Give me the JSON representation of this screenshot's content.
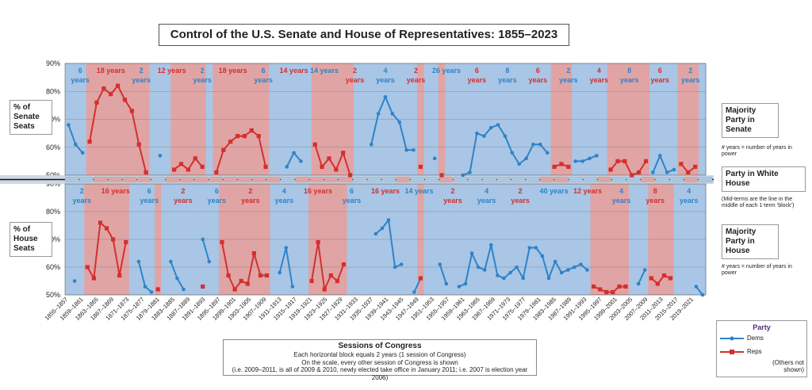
{
  "title": "Control of the U.S. Senate and House of Representatives: 1855–2023",
  "labels": {
    "senate_pct": "% of Senate Seats",
    "house_pct": "% of House Seats",
    "majority_senate": "Majority Party in Senate",
    "majority_house": "Majority Party in House",
    "white_house": "Party in White House",
    "years_note_senate": "# years = number of years in power",
    "years_note_house": "# years = number of years in power",
    "midterm_note": "(Mid-terms are the line in the middle of each 1-term ‘block’)"
  },
  "sessions_box": {
    "heading": "Sessions of Congress",
    "line1": "Each horizontal block equals 2 years (1 session of Congress)",
    "line2": "On the scale, every other session of Congress is shown",
    "line3": "(i.e. 2009–2011, is all of 2009 & 2010, newly elected take office in January 2011; i.e. 2007 is election year 2006)"
  },
  "legend": {
    "title": "Party",
    "dems": "Dems",
    "reps": "Reps",
    "others": "(Others not shown)"
  },
  "colors": {
    "dem_fill": "#a9c6e6",
    "dem_line": "#2e83c8",
    "rep_fill": "#e0a4a4",
    "rep_line": "#d42f2f",
    "plain": "#cfcfcf"
  },
  "chart_data": {
    "type": "line",
    "title": "Control of the U.S. Senate and House of Representatives: 1855–2023",
    "x_tick_labels": [
      "1855–1857",
      "1859–1861",
      "1863–1865",
      "1867–1869",
      "1871–1873",
      "1875–1877",
      "1879–1881",
      "1883–1885",
      "1887–1889",
      "1891–1893",
      "1895–1897",
      "1899–1901",
      "1903–1905",
      "1907–1909",
      "1911–1913",
      "1915–1917",
      "1919–1921",
      "1923–1925",
      "1927–1929",
      "1931–1933",
      "1935–1937",
      "1939–1941",
      "1943–1945",
      "1947–1949",
      "1951–1953",
      "1955–1957",
      "1959–1961",
      "1963–1965",
      "1967–1969",
      "1971–1973",
      "1975–1977",
      "1979–1981",
      "1983–1985",
      "1987–1989",
      "1991–1993",
      "1995–1997",
      "1999–2001",
      "2003–2005",
      "2007–2009",
      "2011–2013",
      "2015–2017",
      "2019–2021"
    ],
    "senate": {
      "ylim": [
        50,
        90
      ],
      "y_tick_labels": [
        "50%",
        "60%",
        "70%",
        "80%",
        "90%"
      ],
      "majority_sequence": "DDDRRRRRRRRRDRRRRRRDRRRRRRRRRDDDRRRRRRRDDDDDDDRRDDDRRDDDDDDDDDDDDDRRRDDDDRRRDRDRRDDDDRRRD",
      "control_blocks": [
        {
          "party": "D",
          "years": "6",
          "label2": "years",
          "v": "sideways"
        },
        {
          "party": "R",
          "years": "18 years"
        },
        {
          "party": "D",
          "years": "2",
          "label2": "years"
        },
        {
          "party": "R",
          "years": "12 years"
        },
        {
          "party": "D",
          "years": "2",
          "label2": "years"
        },
        {
          "party": "R",
          "years": "18 years"
        },
        {
          "party": "D",
          "years": "6",
          "label2": "years"
        },
        {
          "party": "R",
          "years": "14 years"
        },
        {
          "party": "D",
          "years": "14 years"
        },
        {
          "party": "R",
          "years": "2",
          "label2": "years"
        },
        {
          "party": "D",
          "years": "4",
          "label2": "years"
        },
        {
          "party": "R",
          "years": "2",
          "label2": "years"
        },
        {
          "party": "D",
          "years": "26 years"
        },
        {
          "party": "R",
          "years": "6",
          "label2": "years"
        },
        {
          "party": "D",
          "years": "8",
          "label2": "years"
        },
        {
          "party": "R",
          "years": "6",
          "label2": "years"
        },
        {
          "party": "D",
          "years": "2",
          "label2": "years"
        },
        {
          "party": "R",
          "years": "4",
          "label2": "years"
        },
        {
          "party": "D",
          "years": "8",
          "label2": "years"
        },
        {
          "party": "R",
          "years": "6",
          "label2": "years"
        },
        {
          "party": "D",
          "years": "2",
          "label2": "years"
        }
      ],
      "dems": [
        68,
        61,
        58,
        null,
        null,
        null,
        null,
        null,
        null,
        null,
        null,
        null,
        null,
        57,
        null,
        null,
        null,
        null,
        null,
        null,
        null,
        null,
        null,
        null,
        null,
        null,
        null,
        null,
        null,
        null,
        null,
        53,
        58,
        55,
        null,
        null,
        null,
        null,
        null,
        null,
        null,
        null,
        null,
        61,
        72,
        78,
        72,
        69,
        59,
        59,
        null,
        null,
        56,
        null,
        null,
        null,
        50,
        51,
        65,
        64,
        67,
        68,
        64,
        58,
        54,
        56,
        61,
        61,
        58,
        null,
        null,
        null,
        55,
        55,
        56,
        57,
        null,
        null,
        null,
        null,
        null,
        null,
        null,
        51,
        57,
        51,
        52,
        null,
        null,
        null,
        null
      ],
      "reps": [
        null,
        null,
        null,
        62,
        76,
        81,
        79,
        82,
        77,
        73,
        61,
        51,
        null,
        null,
        null,
        52,
        54,
        52,
        56,
        53,
        null,
        51,
        59,
        62,
        64,
        64,
        66,
        64,
        53,
        null,
        null,
        null,
        null,
        null,
        null,
        61,
        53,
        56,
        52,
        58,
        50,
        null,
        null,
        null,
        null,
        null,
        null,
        null,
        null,
        null,
        53,
        null,
        null,
        50,
        null,
        null,
        null,
        null,
        null,
        null,
        null,
        null,
        null,
        null,
        null,
        null,
        null,
        null,
        null,
        53,
        54,
        53,
        null,
        null,
        null,
        null,
        null,
        52,
        55,
        55,
        50,
        51,
        55,
        null,
        null,
        null,
        null,
        54,
        51,
        53,
        null
      ]
    },
    "house": {
      "ylim": [
        50,
        90
      ],
      "y_tick_labels": [
        "50%",
        "60%",
        "70%",
        "80%",
        "90%"
      ],
      "control_blocks": [
        {
          "party": "D",
          "years": "2",
          "label2": "years"
        },
        {
          "party": "R",
          "years": "16 years"
        },
        {
          "party": "D",
          "years": "6",
          "label2": "years"
        },
        {
          "party": "R",
          "years": "2",
          "label2": "years"
        },
        {
          "party": "D",
          "years": "6",
          "label2": "years"
        },
        {
          "party": "R",
          "years": "2",
          "label2": "years"
        },
        {
          "party": "D",
          "years": "4",
          "label2": "years"
        },
        {
          "party": "R",
          "years": "16 years"
        },
        {
          "party": "D",
          "years": "6",
          "label2": "years"
        },
        {
          "party": "R",
          "years": "16 years"
        },
        {
          "party": "D",
          "years": "14 years"
        },
        {
          "party": "R",
          "years": "2",
          "label2": "years"
        },
        {
          "party": "D",
          "years": "4",
          "label2": "years"
        },
        {
          "party": "R",
          "years": "2",
          "label2": "years"
        },
        {
          "party": "D",
          "years": "40 years"
        },
        {
          "party": "R",
          "years": "12 years"
        },
        {
          "party": "D",
          "years": "4",
          "label2": "years"
        },
        {
          "party": "R",
          "years": "8",
          "label2": "years"
        },
        {
          "party": "D",
          "years": "4",
          "label2": "years"
        }
      ],
      "dems": [
        null,
        55,
        null,
        null,
        null,
        null,
        null,
        null,
        null,
        null,
        null,
        62,
        53,
        51,
        null,
        null,
        62,
        56,
        52,
        null,
        null,
        70,
        62,
        null,
        null,
        null,
        null,
        null,
        null,
        null,
        null,
        null,
        null,
        58,
        67,
        53,
        null,
        null,
        null,
        null,
        null,
        null,
        null,
        null,
        null,
        null,
        null,
        null,
        72,
        74,
        77,
        60,
        61,
        null,
        51,
        56,
        null,
        null,
        61,
        54,
        null,
        53,
        54,
        65,
        60,
        59,
        68,
        57,
        56,
        58,
        60,
        56,
        67,
        67,
        64,
        56,
        62,
        58,
        59,
        60,
        61,
        59,
        null,
        null,
        null,
        null,
        null,
        null,
        null,
        54,
        59,
        null,
        null,
        null,
        null,
        null,
        null,
        null,
        53,
        50
      ],
      "reps": [
        null,
        null,
        null,
        60,
        56,
        76,
        74,
        70,
        57,
        69,
        null,
        null,
        null,
        null,
        52,
        null,
        null,
        null,
        null,
        null,
        null,
        53,
        null,
        null,
        69,
        57,
        52,
        55,
        54,
        65,
        57,
        57,
        null,
        null,
        null,
        null,
        null,
        null,
        55,
        69,
        52,
        57,
        55,
        61,
        null,
        null,
        null,
        null,
        null,
        null,
        null,
        null,
        null,
        null,
        null,
        56,
        null,
        null,
        null,
        null,
        null,
        null,
        null,
        null,
        null,
        null,
        null,
        null,
        null,
        null,
        null,
        null,
        null,
        null,
        null,
        null,
        null,
        null,
        null,
        null,
        null,
        null,
        53,
        52,
        51,
        51,
        53,
        53,
        null,
        null,
        null,
        56,
        54,
        57,
        56,
        null,
        null,
        null,
        null,
        null
      ]
    },
    "series": [
      {
        "name": "Dems"
      },
      {
        "name": "Reps"
      }
    ],
    "xlabel": "Sessions of Congress",
    "legend_position": "bottom-right"
  }
}
